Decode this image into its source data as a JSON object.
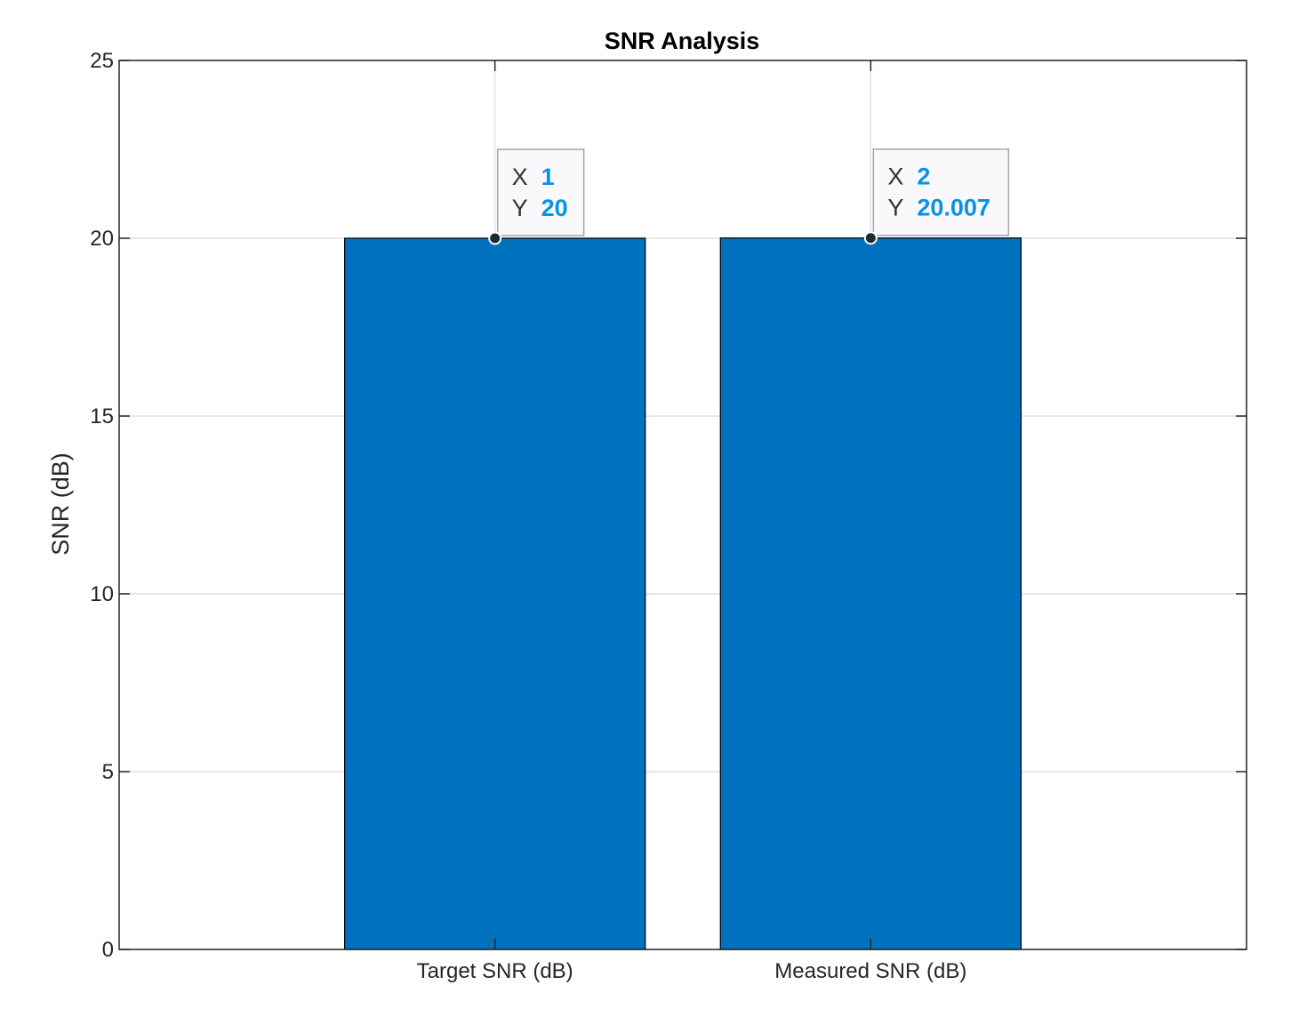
{
  "chart_data": {
    "type": "bar",
    "title": "SNR Analysis",
    "xlabel": "",
    "ylabel": "SNR (dB)",
    "categories": [
      "Target SNR (dB)",
      "Measured SNR (dB)"
    ],
    "values": [
      20,
      20.007
    ],
    "ylim": [
      0,
      25
    ],
    "yticks": [
      0,
      5,
      10,
      15,
      20,
      25
    ],
    "grid": true,
    "legend": "none",
    "bar_color": "#0072bd",
    "datatips": [
      {
        "x_key": "X",
        "x_value": "1",
        "y_key": "Y",
        "y_value": "20"
      },
      {
        "x_key": "X",
        "x_value": "2",
        "y_key": "Y",
        "y_value": "20.007"
      }
    ]
  }
}
